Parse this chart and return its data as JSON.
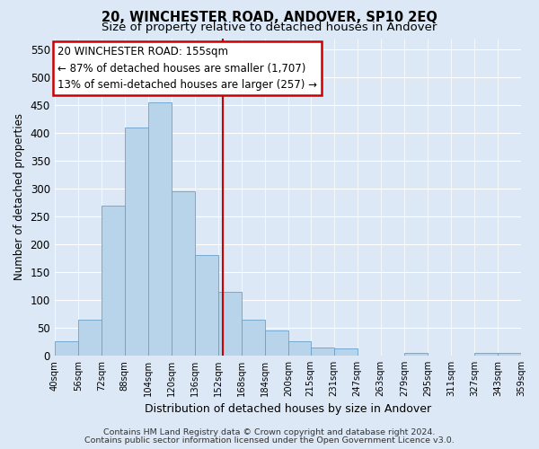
{
  "title1": "20, WINCHESTER ROAD, ANDOVER, SP10 2EQ",
  "title2": "Size of property relative to detached houses in Andover",
  "xlabel": "Distribution of detached houses by size in Andover",
  "ylabel": "Number of detached properties",
  "bar_left_edges": [
    40,
    56,
    72,
    88,
    104,
    120,
    136,
    152,
    168,
    184,
    200,
    215,
    231,
    247,
    263,
    279,
    295,
    311,
    327,
    343
  ],
  "bar_widths": [
    16,
    16,
    16,
    16,
    16,
    16,
    16,
    16,
    16,
    16,
    15,
    16,
    16,
    16,
    16,
    16,
    16,
    16,
    16,
    16
  ],
  "bar_heights": [
    25,
    65,
    270,
    410,
    455,
    295,
    180,
    115,
    65,
    45,
    25,
    15,
    12,
    0,
    0,
    5,
    0,
    0,
    5,
    5
  ],
  "bar_color": "#b8d4ea",
  "bar_edge_color": "#6aa0c8",
  "reference_line_x": 155,
  "reference_line_color": "#cc0000",
  "ylim": [
    0,
    570
  ],
  "tick_labels": [
    "40sqm",
    "56sqm",
    "72sqm",
    "88sqm",
    "104sqm",
    "120sqm",
    "136sqm",
    "152sqm",
    "168sqm",
    "184sqm",
    "200sqm",
    "215sqm",
    "231sqm",
    "247sqm",
    "263sqm",
    "279sqm",
    "295sqm",
    "311sqm",
    "327sqm",
    "343sqm",
    "359sqm"
  ],
  "annotation_title": "20 WINCHESTER ROAD: 155sqm",
  "annotation_line1": "← 87% of detached houses are smaller (1,707)",
  "annotation_line2": "13% of semi-detached houses are larger (257) →",
  "footer1": "Contains HM Land Registry data © Crown copyright and database right 2024.",
  "footer2": "Contains public sector information licensed under the Open Government Licence v3.0.",
  "background_color": "#dce8f5",
  "plot_background": "#dce8f5",
  "grid_color": "#ffffff",
  "title1_fontsize": 10.5,
  "title2_fontsize": 9.5,
  "ylabel_fontsize": 8.5,
  "xlabel_fontsize": 9,
  "tick_fontsize": 7.2,
  "footer_fontsize": 6.8,
  "ann_fontsize": 8.5
}
